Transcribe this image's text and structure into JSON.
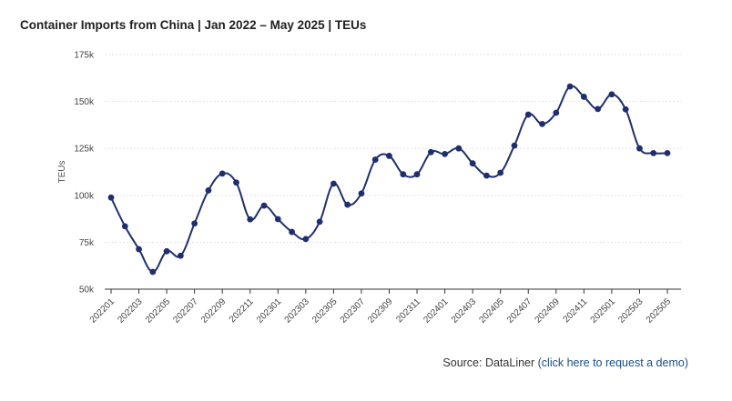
{
  "title": "Container Imports from China | Jan 2022 – May 2025 | TEUs",
  "source": {
    "prefix": "Source: DataLiner ",
    "link_text": "(click here to request a demo)"
  },
  "colors": {
    "line": "#1f2f6e",
    "grid": "#e3e3e3",
    "axis": "#333333"
  },
  "chart_data": {
    "type": "line",
    "title": "Container Imports from China | Jan 2022 – May 2025 | TEUs",
    "xlabel": "",
    "ylabel": "TEUs",
    "ylim": [
      50000,
      175000
    ],
    "y_ticks": [
      50000,
      75000,
      100000,
      125000,
      150000,
      175000
    ],
    "y_tick_labels": [
      "50k",
      "75k",
      "100k",
      "125k",
      "150k",
      "175k"
    ],
    "grid": "horizontal dashed",
    "legend": "none",
    "x": [
      "202201",
      "202202",
      "202203",
      "202204",
      "202205",
      "202206",
      "202207",
      "202208",
      "202209",
      "202210",
      "202211",
      "202212",
      "202301",
      "202302",
      "202303",
      "202304",
      "202305",
      "202306",
      "202307",
      "202308",
      "202309",
      "202310",
      "202311",
      "202312",
      "202401",
      "202402",
      "202403",
      "202404",
      "202405",
      "202406",
      "202407",
      "202408",
      "202409",
      "202410",
      "202411",
      "202412",
      "202501",
      "202502",
      "202503",
      "202504",
      "202505"
    ],
    "x_tick_labels": [
      "202201",
      "202203",
      "202205",
      "202207",
      "202209",
      "202211",
      "202301",
      "202303",
      "202305",
      "202307",
      "202309",
      "202311",
      "202401",
      "202403",
      "202405",
      "202407",
      "202409",
      "202411",
      "202501",
      "202503",
      "202505"
    ],
    "series": [
      {
        "values": [
          98800,
          83500,
          71300,
          59200,
          70200,
          67800,
          85000,
          102600,
          111600,
          106800,
          87200,
          94500,
          87300,
          80500,
          76700,
          85900,
          106200,
          95000,
          101000,
          119000,
          121000,
          111200,
          111200,
          123000,
          122000,
          125000,
          117000,
          110500,
          112000,
          126500,
          143000,
          138000,
          144000,
          158000,
          152500,
          146000,
          153800,
          145800,
          125000,
          122500,
          122500
        ]
      }
    ]
  }
}
